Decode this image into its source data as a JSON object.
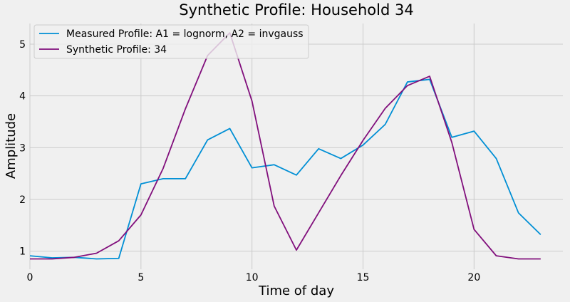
{
  "chart_data": {
    "type": "line",
    "title": "Synthetic Profile: Household 34",
    "xlabel": "Time of day",
    "ylabel": "Amplitude",
    "xlim": [
      0,
      24
    ],
    "ylim": [
      0.65,
      5.4
    ],
    "xticks": [
      0,
      5,
      10,
      15,
      20
    ],
    "yticks": [
      1,
      2,
      3,
      4,
      5
    ],
    "grid": true,
    "legend_position": "top-left",
    "x": [
      0,
      1,
      2,
      3,
      4,
      5,
      6,
      7,
      8,
      9,
      10,
      11,
      12,
      13,
      14,
      15,
      16,
      17,
      18,
      19,
      20,
      21,
      22,
      23
    ],
    "series": [
      {
        "name": "Measured Profile: A1 = lognorm, A2 = invgauss",
        "color": "#008fd5",
        "values": [
          0.91,
          0.87,
          0.88,
          0.85,
          0.86,
          2.3,
          2.4,
          2.4,
          3.15,
          3.37,
          2.61,
          2.67,
          2.47,
          2.98,
          2.79,
          3.05,
          3.45,
          4.27,
          4.32,
          3.2,
          3.32,
          2.79,
          1.74,
          1.32
        ]
      },
      {
        "name": "Synthetic Profile: 34",
        "color": "#810f7c",
        "values": [
          0.85,
          0.85,
          0.88,
          0.96,
          1.2,
          1.7,
          2.6,
          3.75,
          4.78,
          5.22,
          3.9,
          1.87,
          1.02,
          1.74,
          2.46,
          3.14,
          3.76,
          4.2,
          4.38,
          3.1,
          1.42,
          0.91,
          0.85,
          0.85
        ]
      }
    ]
  }
}
